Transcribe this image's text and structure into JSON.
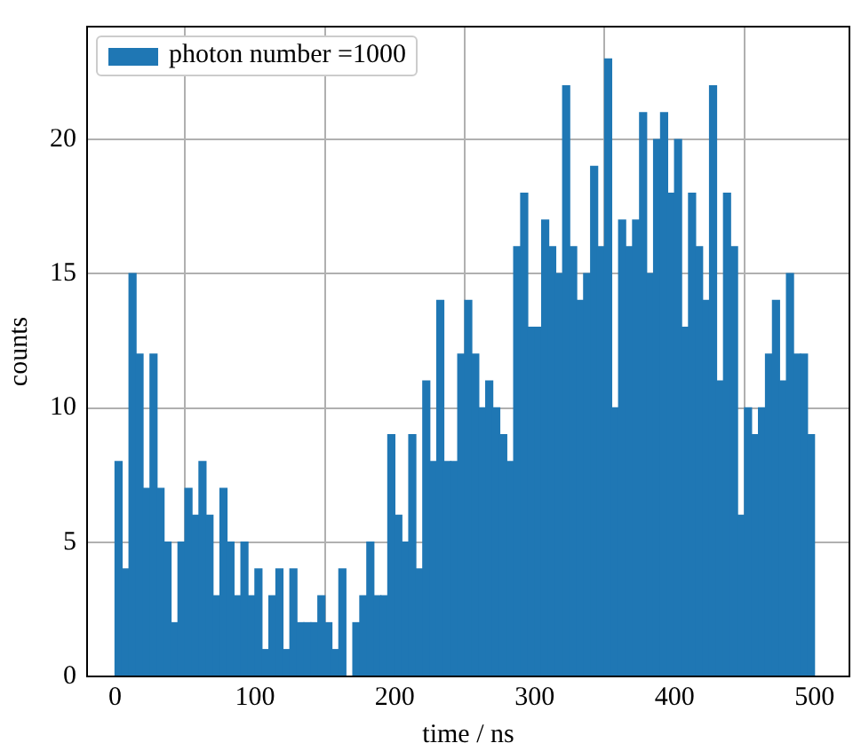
{
  "chart_data": {
    "type": "histogram",
    "xlabel": "time / ns",
    "ylabel": "counts",
    "bins": [
      0,
      5,
      10,
      15,
      20,
      25,
      30,
      35,
      40,
      45,
      50,
      55,
      60,
      65,
      70,
      75,
      80,
      85,
      90,
      95,
      100,
      105,
      110,
      115,
      120,
      125,
      130,
      135,
      140,
      145,
      150,
      155,
      160,
      165,
      170,
      175,
      180,
      185,
      190,
      195,
      200,
      205,
      210,
      215,
      220,
      225,
      230,
      235,
      240,
      245,
      250,
      255,
      260,
      265,
      270,
      275,
      280,
      285,
      290,
      295,
      300,
      305,
      310,
      315,
      320,
      325,
      330,
      335,
      340,
      345,
      350,
      355,
      360,
      365,
      370,
      375,
      380,
      385,
      390,
      395,
      400,
      405,
      410,
      415,
      420,
      425,
      430,
      435,
      440,
      445,
      450,
      455,
      460,
      465,
      470,
      475,
      480,
      485,
      490,
      495,
      500
    ],
    "series": [
      {
        "name": "photon number =1000",
        "color": "#1f77b4",
        "values": [
          8,
          4,
          15,
          12,
          7,
          12,
          7,
          5,
          2,
          5,
          7,
          6,
          8,
          6,
          3,
          7,
          5,
          3,
          5,
          3,
          4,
          1,
          3,
          4,
          1,
          4,
          2,
          2,
          2,
          3,
          2,
          1,
          4,
          0,
          2,
          3,
          5,
          3,
          3,
          9,
          6,
          5,
          9,
          4,
          11,
          8,
          14,
          8,
          8,
          12,
          14,
          12,
          10,
          11,
          10,
          9,
          8,
          16,
          18,
          13,
          13,
          17,
          16,
          15,
          22,
          16,
          14,
          15,
          19,
          16,
          23,
          10,
          17,
          16,
          17,
          21,
          15,
          20,
          21,
          18,
          20,
          13,
          18,
          16,
          14,
          22,
          11,
          18,
          16,
          6,
          10,
          9,
          10,
          12,
          14,
          11,
          15,
          12,
          12,
          9
        ]
      }
    ],
    "xlim": [
      -20,
      525
    ],
    "ylim": [
      0,
      24.2
    ],
    "xticks": [
      0,
      100,
      200,
      300,
      400,
      500
    ],
    "yticks": [
      0,
      5,
      10,
      15,
      20
    ],
    "grid": true,
    "legend": "top left"
  }
}
